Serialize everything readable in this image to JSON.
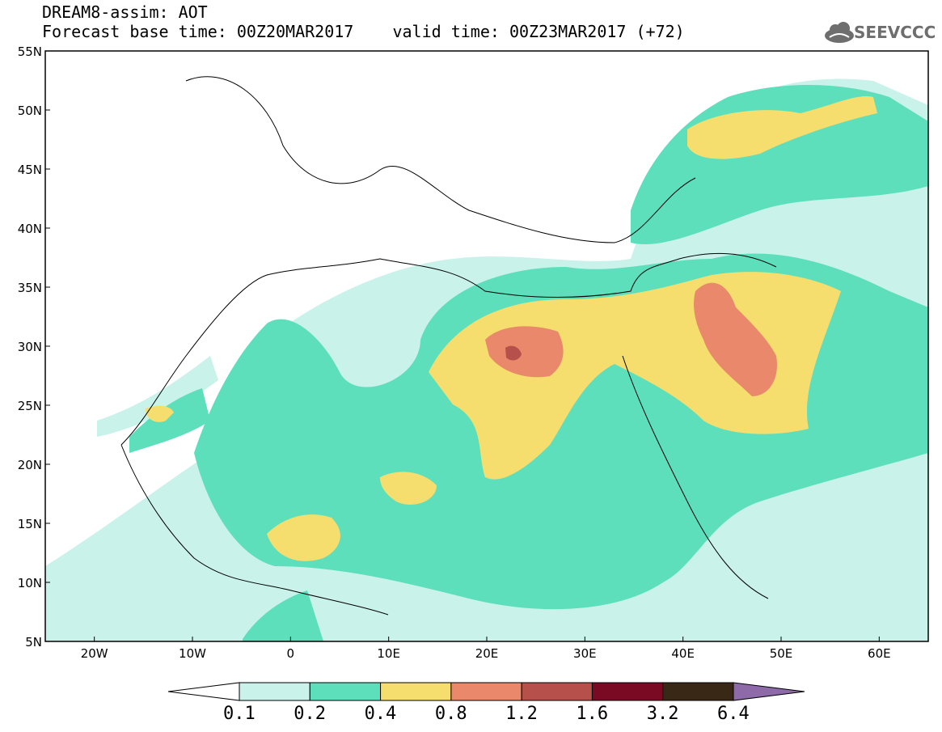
{
  "title": {
    "line1": "DREAM8-assim: AOT",
    "line2": "Forecast base time: 00Z20MAR2017    valid time: 00Z23MAR2017 (+72)"
  },
  "logo": {
    "text": "SEEVCCC",
    "icon": "cloud-icon",
    "color": "#6e6e6e"
  },
  "map": {
    "lat_range": [
      5,
      55
    ],
    "lon_range": [
      -25,
      65
    ],
    "lat_ticks": [
      "5N",
      "10N",
      "15N",
      "20N",
      "25N",
      "30N",
      "35N",
      "40N",
      "45N",
      "50N",
      "55N"
    ],
    "lon_ticks": [
      "20W",
      "10W",
      "0",
      "10E",
      "20E",
      "30E",
      "40E",
      "50E",
      "60E"
    ]
  },
  "colorbar": {
    "levels": [
      "0.1",
      "0.2",
      "0.4",
      "0.8",
      "1.2",
      "1.6",
      "3.2",
      "6.4"
    ],
    "colors": [
      "#ffffff",
      "#c8f2ea",
      "#5ddfbc",
      "#f5de6e",
      "#e9886a",
      "#b5504a",
      "#7a0a24",
      "#3a2817",
      "#8e6aa8"
    ]
  }
}
